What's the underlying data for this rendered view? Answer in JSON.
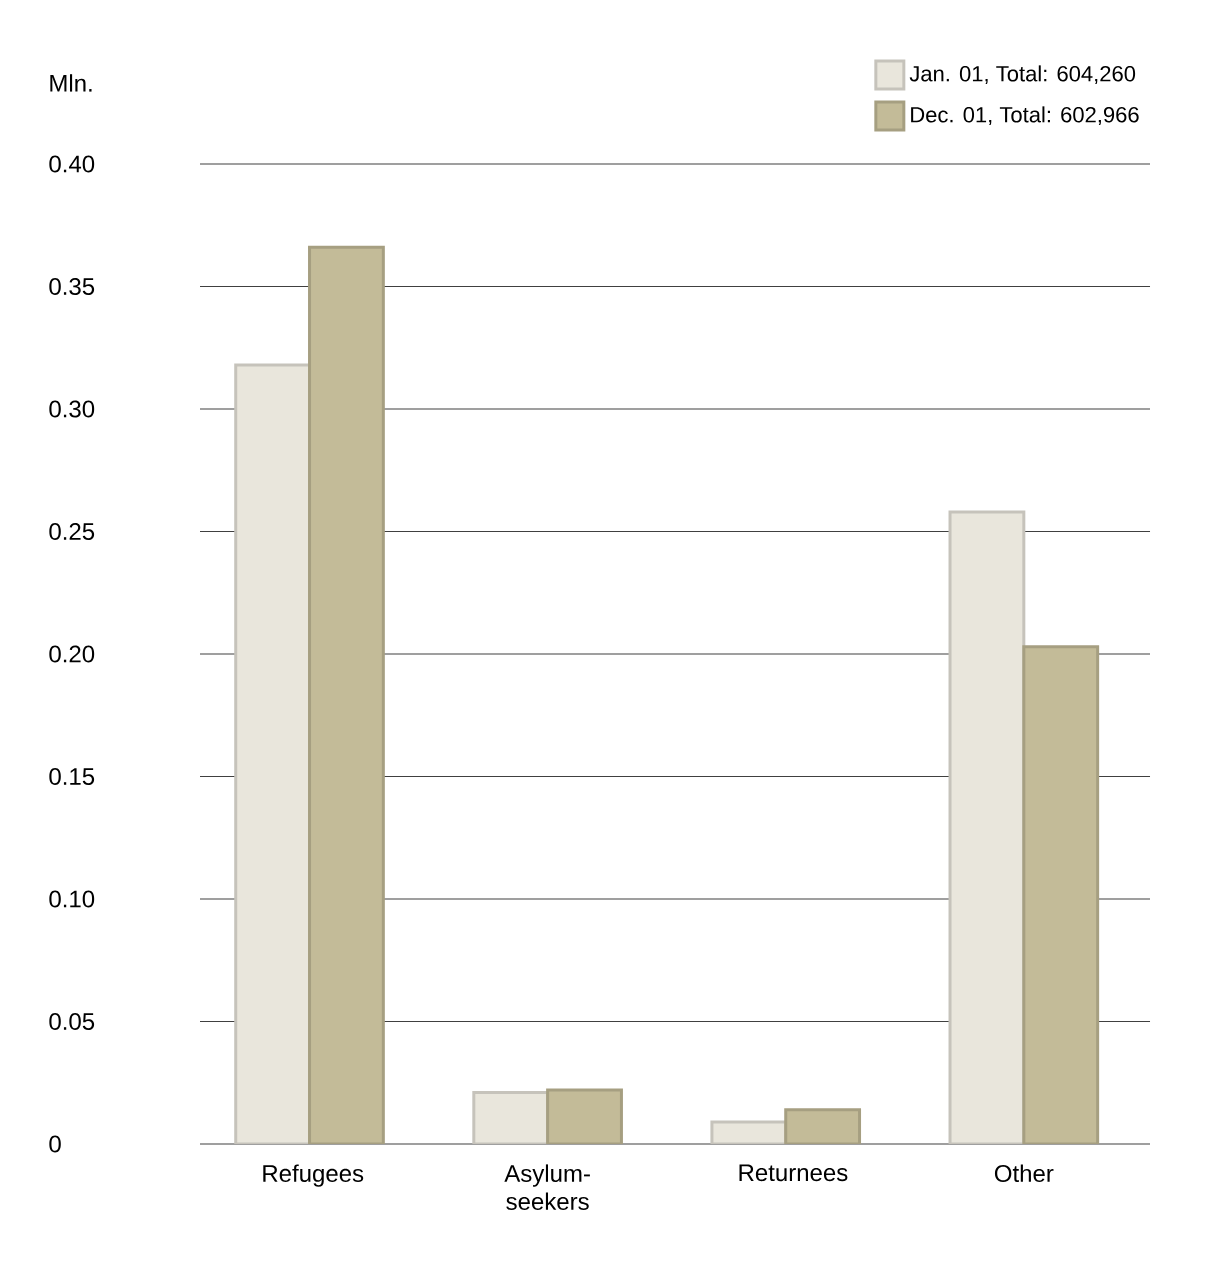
{
  "chart_data": {
    "type": "bar",
    "ylabel": "Mln.",
    "categories": [
      "Refugees",
      "Asylum-seekers",
      "Returnees",
      "Other"
    ],
    "series": [
      {
        "name": "Jan. 01, Total: 604,260",
        "color": "#e9e6dc",
        "values": [
          0.318,
          0.021,
          0.009,
          0.258
        ]
      },
      {
        "name": "Dec. 01, Total: 602,966",
        "color": "#c3bb98",
        "values": [
          0.366,
          0.022,
          0.014,
          0.203
        ]
      }
    ],
    "ylim": [
      0,
      0.4
    ],
    "yticks": [
      0,
      {
        "value": 0.05,
        "label": "0.05"
      },
      {
        "value": 0.1,
        "label": "0.10"
      },
      {
        "value": 0.15,
        "label": "0.15"
      },
      {
        "value": 0.2,
        "label": "0.20"
      },
      {
        "value": 0.25,
        "label": "0.25"
      },
      {
        "value": 0.3,
        "label": "0.30"
      },
      {
        "value": 0.35,
        "label": "0.35"
      },
      {
        "value": 0.4,
        "label": "0.40"
      }
    ],
    "grid": "y",
    "legend": "top right"
  }
}
